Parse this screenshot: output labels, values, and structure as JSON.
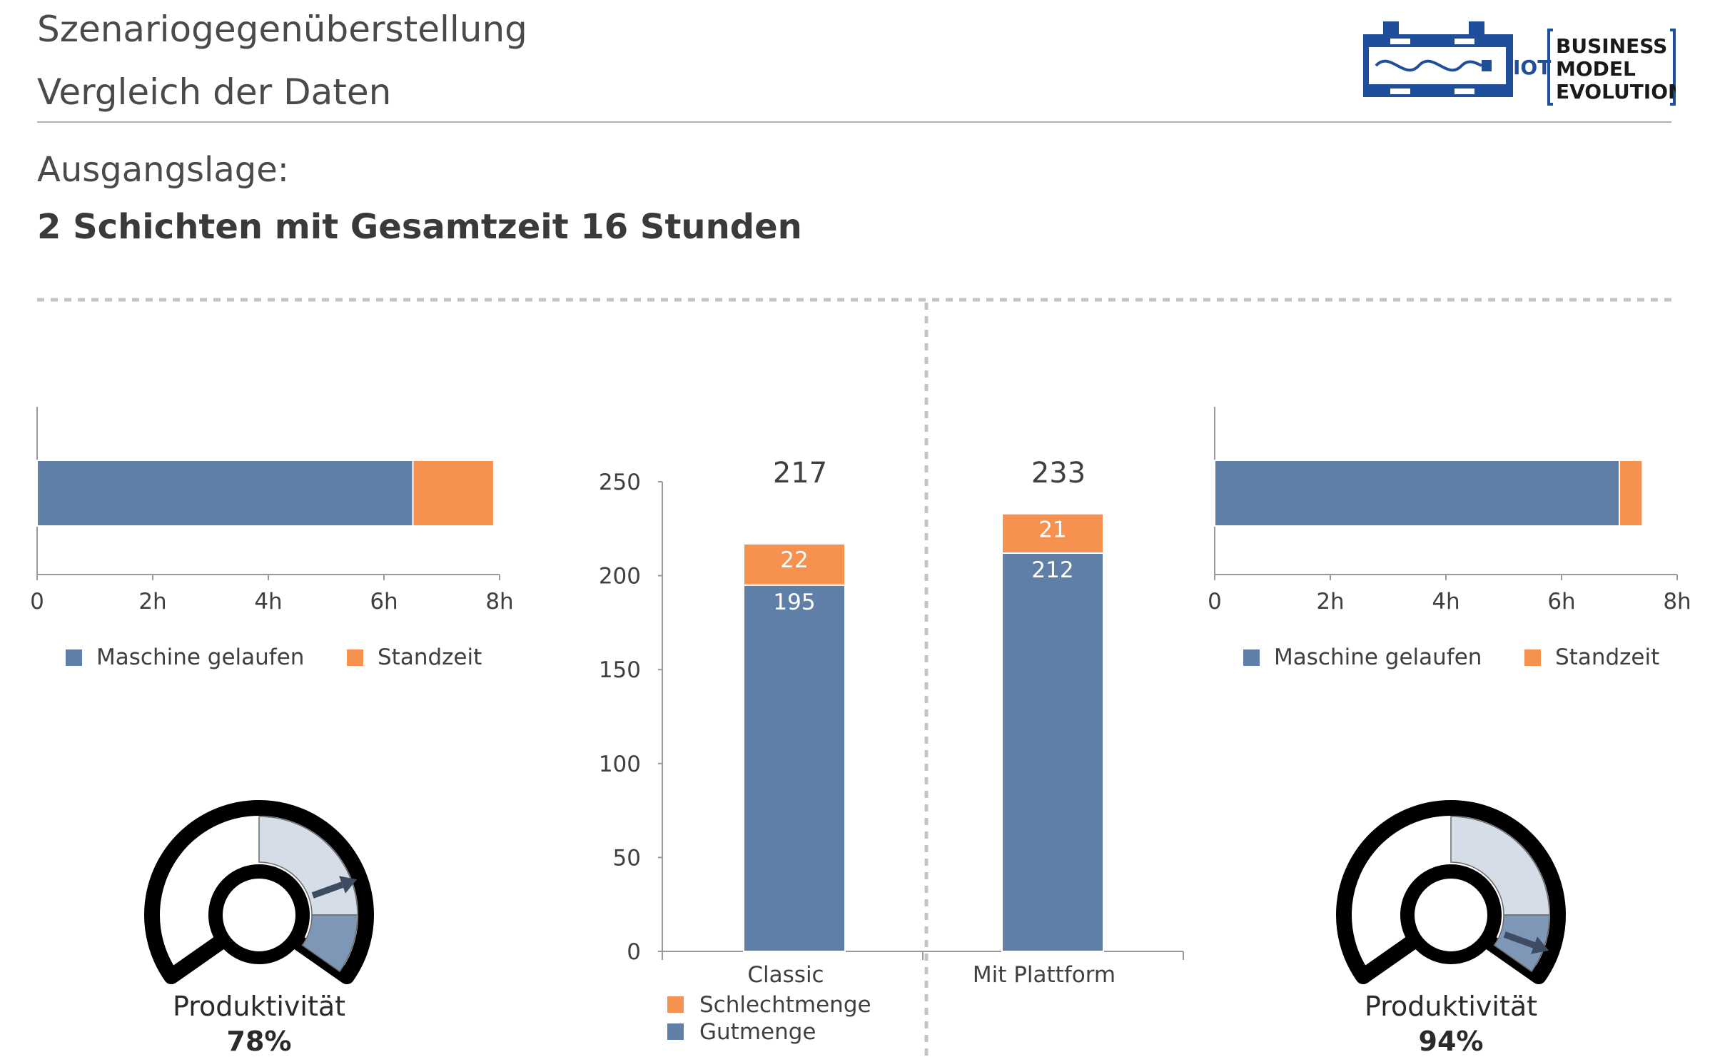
{
  "header": {
    "title_line1": "Szenariogegenüberstellung",
    "title_line2": "Vergleich der Daten",
    "subtitle": "Ausgangslage:",
    "subtitle_bold": "2 Schichten mit Gesamtzeit 16 Stunden"
  },
  "logo": {
    "iot": "IOT",
    "line1": "BUSINESS",
    "line2": "MODEL",
    "line3": "EVOLUTION"
  },
  "colors": {
    "blue": "#5f7fa6",
    "orange": "#f79150",
    "gauge_light": "#d5dde8",
    "gauge_dark": "#7f97b6",
    "needle": "#3d4b63",
    "text": "#3f3f3f",
    "axis": "#9a9a9a",
    "divider": "#c4c4c4"
  },
  "gauges": [
    {
      "label": "Produktivität",
      "value_text": "78%",
      "value": 0.78
    },
    {
      "label": "Produktivität",
      "value_text": "94%",
      "value": 0.94
    }
  ],
  "chart_data": [
    {
      "type": "bar",
      "orientation": "horizontal",
      "stacked": true,
      "x_ticks": [
        "0",
        "2h",
        "4h",
        "6h",
        "8h"
      ],
      "xlim": [
        0,
        8
      ],
      "series": [
        {
          "name": "Maschine gelaufen",
          "values": [
            6.5
          ]
        },
        {
          "name": "Standzeit",
          "values": [
            1.4
          ]
        }
      ],
      "legend": "bottom"
    },
    {
      "type": "bar",
      "stacked": true,
      "categories": [
        "Classic",
        "Mit Plattform"
      ],
      "series": [
        {
          "name": "Schlechtmenge",
          "values": [
            22,
            21
          ]
        },
        {
          "name": "Gutmenge",
          "values": [
            195,
            212
          ]
        }
      ],
      "totals": [
        217,
        233
      ],
      "y_ticks": [
        "0",
        "50",
        "100",
        "150",
        "200",
        "250"
      ],
      "ylim": [
        0,
        250
      ],
      "legend": "bottom-left"
    },
    {
      "type": "bar",
      "orientation": "horizontal",
      "stacked": true,
      "x_ticks": [
        "0",
        "2h",
        "4h",
        "6h",
        "8h"
      ],
      "xlim": [
        0,
        8
      ],
      "series": [
        {
          "name": "Maschine gelaufen",
          "values": [
            7.0
          ]
        },
        {
          "name": "Standzeit",
          "values": [
            0.4
          ]
        }
      ],
      "legend": "bottom"
    }
  ]
}
